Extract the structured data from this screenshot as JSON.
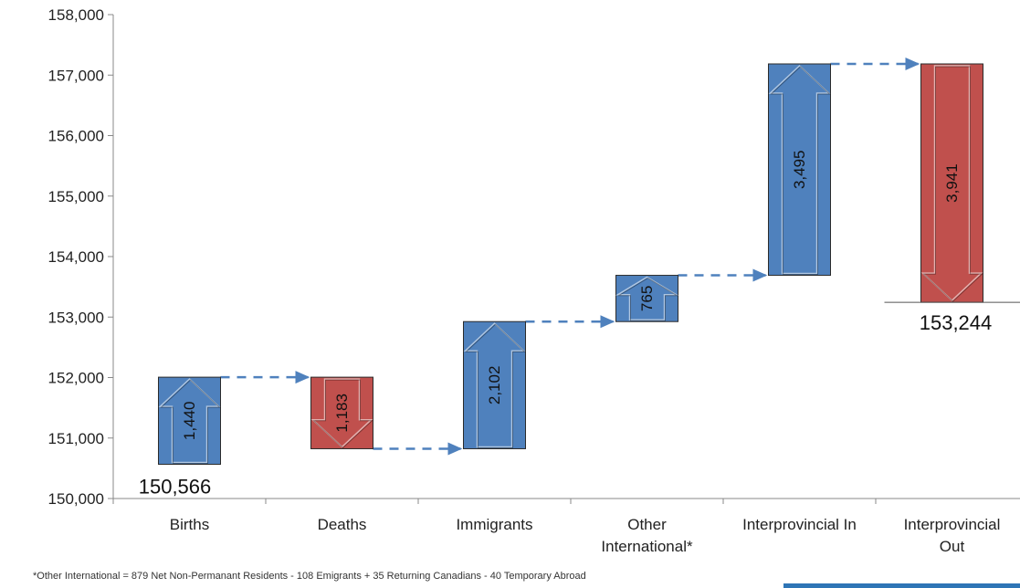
{
  "chart_data": {
    "type": "waterfall",
    "ylim": [
      150000,
      158000
    ],
    "yticks": [
      150000,
      151000,
      152000,
      153000,
      154000,
      155000,
      156000,
      157000,
      158000
    ],
    "ytick_labels": [
      "150,000",
      "151,000",
      "152,000",
      "153,000",
      "154,000",
      "155,000",
      "156,000",
      "157,000",
      "158,000"
    ],
    "grid": false,
    "categories": [
      {
        "lines": [
          "Births"
        ]
      },
      {
        "lines": [
          "Deaths"
        ]
      },
      {
        "lines": [
          "Immigrants"
        ]
      },
      {
        "lines": [
          "Other",
          "International*"
        ]
      },
      {
        "lines": [
          "Interprovincial In"
        ]
      },
      {
        "lines": [
          "Interprovincial",
          "Out"
        ]
      }
    ],
    "steps": [
      {
        "start": 150566,
        "end": 152006,
        "label": "1,440",
        "direction": "up"
      },
      {
        "start": 152006,
        "end": 150823,
        "label": "1,183",
        "direction": "down"
      },
      {
        "start": 150823,
        "end": 152925,
        "label": "2,102",
        "direction": "up"
      },
      {
        "start": 152925,
        "end": 153690,
        "label": "765",
        "direction": "up"
      },
      {
        "start": 153690,
        "end": 157185,
        "label": "3,495",
        "direction": "up"
      },
      {
        "start": 157185,
        "end": 153244,
        "label": "3,941",
        "direction": "down"
      }
    ],
    "start_total": {
      "value": 150566,
      "label": "150,566"
    },
    "end_total": {
      "value": 153244,
      "label": "153,244"
    },
    "colors": {
      "increase": "#4f81bd",
      "decrease": "#c0504d",
      "connector": "#4f81bd",
      "axis": "#888888"
    },
    "footnote": "*Other International = 879 Net Non-Permanant  Residents - 108 Emigrants + 35 Returning Canadians - 40 Temporary Abroad"
  },
  "colors": {
    "footer_bar": "#2e75b6"
  }
}
